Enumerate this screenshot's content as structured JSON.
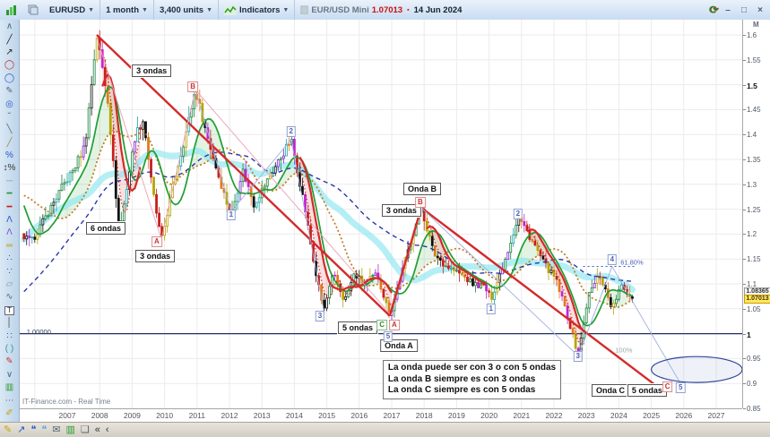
{
  "toolbar": {
    "symbol": "EURUSD",
    "timeframe": "1 month",
    "units": "3,400 units",
    "indicators_label": "Indicators",
    "feed_symbol": "EUR/USD Mini",
    "feed_price": "1.07013",
    "feed_date": "14 Jun 2024"
  },
  "window_controls": {
    "minimize": "–",
    "restore": "□",
    "close": "×",
    "refresh": "⟳"
  },
  "sidebar": {
    "tools": [
      {
        "n": "scroll-up-icon",
        "g": "∧",
        "c": "#456a8a"
      },
      {
        "n": "trendline-tool-icon",
        "g": "╱",
        "c": "#222"
      },
      {
        "n": "arrow-tool-icon",
        "g": "↗",
        "c": "#222"
      },
      {
        "n": "ellipse-red-tool-icon",
        "g": "◯",
        "c": "#cc2222"
      },
      {
        "n": "ellipse-blue-tool-icon",
        "g": "◯",
        "c": "#2855cc"
      },
      {
        "n": "pencil-tool-icon",
        "g": "✎",
        "c": "#5a6a7a"
      },
      {
        "n": "ellipse-handles-tool-icon",
        "g": "◎",
        "c": "#2855cc"
      },
      {
        "n": "arc-tool-icon",
        "g": "˘",
        "c": "#5a6a7a"
      },
      {
        "n": "segment-tool-icon",
        "g": "╲",
        "c": "#5a6a7a"
      },
      {
        "n": "ray-tool-icon",
        "g": "╱",
        "c": "#a08a50"
      },
      {
        "n": "fibonacci-tool-icon",
        "g": "%",
        "c": "#2855cc"
      },
      {
        "n": "percent-tool-icon",
        "g": "↕%",
        "c": "#333"
      },
      {
        "n": "divider-icon",
        "g": "─",
        "c": "#8a96a6"
      },
      {
        "n": "hline-green-tool-icon",
        "g": "━",
        "c": "#2a9a2a"
      },
      {
        "n": "hline-red-tool-icon",
        "g": "━",
        "c": "#cc2222"
      },
      {
        "n": "wave-count-tool-icon",
        "g": "Λ",
        "c": "#2855cc"
      },
      {
        "n": "wave-label-tool-icon",
        "g": "Λ",
        "c": "#7a55cc"
      },
      {
        "n": "channel-tool-icon",
        "g": "═",
        "c": "#b8a000"
      },
      {
        "n": "pattern-dots-tool-icon",
        "g": "∴",
        "c": "#2855cc"
      },
      {
        "n": "points-tool-icon",
        "g": "∵",
        "c": "#2855cc"
      },
      {
        "n": "eraser-tool-icon",
        "g": "▱",
        "c": "#8a96a6"
      },
      {
        "n": "curve-tool-icon",
        "g": "∿",
        "c": "#5a6a7a"
      },
      {
        "n": "text-tool-icon",
        "g": "T",
        "c": "#333",
        "box": true
      },
      {
        "n": "vline-tool-icon",
        "g": "│",
        "c": "#444"
      },
      {
        "n": "dots-tool-icon",
        "g": "∷",
        "c": "#2855cc"
      },
      {
        "n": "bracket-tool-icon",
        "g": "( )",
        "c": "#2a9a9a"
      },
      {
        "n": "pencil-red-tool-icon",
        "g": "✎",
        "c": "#cc3333"
      },
      {
        "n": "scroll-down-icon",
        "g": "∨",
        "c": "#456a8a"
      },
      {
        "n": "indicator-window-tool-icon",
        "g": "▥",
        "c": "#2a9a2a"
      },
      {
        "n": "more-tools-icon",
        "g": "⋯",
        "c": "#556"
      },
      {
        "n": "highlight-tool-icon",
        "g": "✐",
        "c": "#c9a400"
      }
    ]
  },
  "statusbar": {
    "watermark": "IT-Finance.com - Real Time",
    "icons": [
      {
        "n": "annotate-marker-icon",
        "g": "✎",
        "c": "#c9a400"
      },
      {
        "n": "share-icon",
        "g": "↗",
        "c": "#2855cc"
      },
      {
        "n": "chat-icon",
        "g": "❝",
        "c": "#2855cc"
      },
      {
        "n": "chat-alt-icon",
        "g": "❝",
        "c": "#55aadd"
      },
      {
        "n": "mail-icon",
        "g": "✉",
        "c": "#556677"
      },
      {
        "n": "chart-window-icon",
        "g": "▥",
        "c": "#2a9a2a"
      },
      {
        "n": "cascade-windows-icon",
        "g": "❏",
        "c": "#556677"
      },
      {
        "n": "collapse-left-icon",
        "g": "«",
        "c": "#333"
      },
      {
        "n": "step-left-icon",
        "g": "‹",
        "c": "#333"
      }
    ]
  },
  "axis": {
    "period_label": "M",
    "price_ticks": [
      {
        "v": 1.6,
        "l": "1.6"
      },
      {
        "v": 1.55,
        "l": "1.55"
      },
      {
        "v": 1.5,
        "l": "1.5",
        "bold": true
      },
      {
        "v": 1.45,
        "l": "1.45"
      },
      {
        "v": 1.4,
        "l": "1.4"
      },
      {
        "v": 1.35,
        "l": "1.35"
      },
      {
        "v": 1.3,
        "l": "1.3"
      },
      {
        "v": 1.25,
        "l": "1.25"
      },
      {
        "v": 1.2,
        "l": "1.2"
      },
      {
        "v": 1.15,
        "l": "1.15"
      },
      {
        "v": 1.1,
        "l": "1.1"
      },
      {
        "v": 1.05,
        "l": "1.05"
      },
      {
        "v": 1.0,
        "l": "1",
        "bold": true
      },
      {
        "v": 0.95,
        "l": "0.95"
      },
      {
        "v": 0.9,
        "l": "0.9"
      },
      {
        "v": 0.85,
        "l": "0.85"
      }
    ],
    "year_ticks": [
      2007,
      2008,
      2009,
      2010,
      2011,
      2012,
      2013,
      2014,
      2015,
      2016,
      2017,
      2018,
      2019,
      2020,
      2021,
      2022,
      2023,
      2024,
      2025,
      2026,
      2027
    ],
    "tags": [
      {
        "text": "1.08365",
        "p": 1.0836,
        "style": "white"
      },
      {
        "text": "1.07013",
        "p": 1.0701,
        "style": "yellow"
      }
    ]
  },
  "chart_data": {
    "type": "candlestick",
    "symbol": "EUR/USD",
    "timeframe": "monthly",
    "t_range": [
      2005.54,
      2027.8
    ],
    "p_range": [
      0.848,
      1.625
    ],
    "grid": {
      "price_step": 0.05,
      "year_step": 1
    },
    "keyframes": [
      [
        1999.0,
        1.17
      ],
      [
        2000.8,
        0.85
      ],
      [
        2002.0,
        0.88
      ],
      [
        2003.0,
        1.06
      ],
      [
        2004.0,
        1.25
      ],
      [
        2004.95,
        1.35
      ],
      [
        2005.45,
        1.2
      ],
      [
        2005.9,
        1.185
      ],
      [
        2006.3,
        1.23
      ],
      [
        2006.8,
        1.29
      ],
      [
        2007.2,
        1.33
      ],
      [
        2007.55,
        1.38
      ],
      [
        2007.91,
        1.6
      ],
      [
        2008.25,
        1.47
      ],
      [
        2008.6,
        1.2
      ],
      [
        2008.85,
        1.3
      ],
      [
        2009.1,
        1.4
      ],
      [
        2009.35,
        1.43
      ],
      [
        2009.6,
        1.3
      ],
      [
        2009.9,
        1.185
      ],
      [
        2010.3,
        1.31
      ],
      [
        2010.65,
        1.4
      ],
      [
        2010.95,
        1.49
      ],
      [
        2011.3,
        1.4
      ],
      [
        2011.65,
        1.32
      ],
      [
        2012.05,
        1.235
      ],
      [
        2012.4,
        1.33
      ],
      [
        2012.75,
        1.26
      ],
      [
        2013.1,
        1.3
      ],
      [
        2013.5,
        1.345
      ],
      [
        2013.9,
        1.39
      ],
      [
        2014.3,
        1.26
      ],
      [
        2014.6,
        1.14
      ],
      [
        2014.9,
        1.046
      ],
      [
        2015.2,
        1.12
      ],
      [
        2015.55,
        1.065
      ],
      [
        2015.85,
        1.12
      ],
      [
        2016.15,
        1.1
      ],
      [
        2016.55,
        1.12
      ],
      [
        2016.94,
        1.036
      ],
      [
        2017.3,
        1.12
      ],
      [
        2017.6,
        1.19
      ],
      [
        2017.91,
        1.253
      ],
      [
        2018.3,
        1.16
      ],
      [
        2018.7,
        1.135
      ],
      [
        2019.1,
        1.12
      ],
      [
        2019.5,
        1.1
      ],
      [
        2019.85,
        1.095
      ],
      [
        2020.06,
        1.07
      ],
      [
        2020.45,
        1.14
      ],
      [
        2020.9,
        1.235
      ],
      [
        2021.3,
        1.19
      ],
      [
        2021.7,
        1.14
      ],
      [
        2022.05,
        1.11
      ],
      [
        2022.4,
        1.04
      ],
      [
        2022.75,
        0.955
      ],
      [
        2023.05,
        1.075
      ],
      [
        2023.4,
        1.12
      ],
      [
        2023.8,
        1.05
      ],
      [
        2024.05,
        1.095
      ],
      [
        2024.45,
        1.07013
      ]
    ],
    "visible_from": 2005.62,
    "ma": {
      "fast": 10,
      "med": 21,
      "slow": 60,
      "band": 40,
      "red_fast": 4,
      "red_slow": 8
    },
    "red_band_intervals": [
      [
        2008.05,
        2009.25
      ],
      [
        2014.15,
        2017.05
      ],
      [
        2018.05,
        2019.95
      ],
      [
        2021.15,
        2022.95
      ]
    ],
    "trendlines": [
      {
        "cls": "red",
        "pts": [
          [
            2007.91,
            1.6
          ],
          [
            2016.94,
            1.036
          ]
        ]
      },
      {
        "cls": "red",
        "pts": [
          [
            2016.94,
            1.036
          ],
          [
            2017.91,
            1.253
          ]
        ]
      },
      {
        "cls": "red",
        "pts": [
          [
            2017.91,
            1.253
          ],
          [
            2025.42,
            0.882
          ]
        ]
      },
      {
        "cls": "pink",
        "pts": [
          [
            2007.91,
            1.595
          ],
          [
            2009.9,
            1.19
          ]
        ]
      },
      {
        "cls": "pink",
        "pts": [
          [
            2009.9,
            1.19
          ],
          [
            2010.95,
            1.49
          ]
        ]
      },
      {
        "cls": "pink",
        "pts": [
          [
            2010.95,
            1.49
          ],
          [
            2016.94,
            1.04
          ]
        ]
      },
      {
        "cls": "blue",
        "pts": [
          [
            2010.95,
            1.49
          ],
          [
            2012.05,
            1.245
          ]
        ]
      },
      {
        "cls": "blue",
        "pts": [
          [
            2012.05,
            1.245
          ],
          [
            2013.9,
            1.39
          ]
        ]
      },
      {
        "cls": "blue",
        "pts": [
          [
            2013.9,
            1.39
          ],
          [
            2014.9,
            1.05
          ]
        ]
      },
      {
        "cls": "blue",
        "pts": [
          [
            2017.91,
            1.253
          ],
          [
            2022.75,
            0.955
          ]
        ]
      },
      {
        "cls": "blue",
        "pts": [
          [
            2022.75,
            0.955
          ],
          [
            2023.79,
            1.135
          ]
        ]
      },
      {
        "cls": "blue",
        "pts": [
          [
            2023.79,
            1.135
          ],
          [
            2025.9,
            0.9
          ]
        ]
      }
    ],
    "fib": {
      "p": 1.135,
      "t0": 2022.9,
      "t1": 2024.5,
      "label": "61.80%",
      "label_t": 2024.05,
      "label_p": 1.143
    },
    "pct_label": {
      "text": "100%",
      "t": 2024.15,
      "p": 0.967
    },
    "hline": {
      "p": 1.0,
      "label": "1.00000",
      "label_t": 2005.75,
      "label_p": 1.012
    },
    "ellipse": {
      "t": 2026.4,
      "p": 0.928,
      "rt": 1.4,
      "rp": 0.026
    },
    "wave_labels": [
      {
        "label": "B",
        "t": 2010.87,
        "p": 1.496,
        "style": "red"
      },
      {
        "label": "A",
        "t": 2009.76,
        "p": 1.184,
        "style": "red"
      },
      {
        "label": "1",
        "t": 2012.05,
        "p": 1.238,
        "style": "blue"
      },
      {
        "label": "2",
        "t": 2013.9,
        "p": 1.406,
        "style": "blue"
      },
      {
        "label": "3",
        "t": 2014.79,
        "p": 1.035,
        "style": "blue"
      },
      {
        "label": "C",
        "t": 2016.7,
        "p": 1.017,
        "style": "green"
      },
      {
        "label": "A",
        "t": 2017.08,
        "p": 1.017,
        "style": "red"
      },
      {
        "label": "5",
        "t": 2016.89,
        "p": 0.994,
        "style": "blue"
      },
      {
        "label": "B",
        "t": 2017.88,
        "p": 1.263,
        "style": "red"
      },
      {
        "label": "1",
        "t": 2020.06,
        "p": 1.049,
        "style": "blue"
      },
      {
        "label": "2",
        "t": 2020.89,
        "p": 1.241,
        "style": "blue"
      },
      {
        "label": "3",
        "t": 2022.74,
        "p": 0.954,
        "style": "blue"
      },
      {
        "label": "4",
        "t": 2023.79,
        "p": 1.148,
        "style": "blue"
      },
      {
        "label": "C",
        "t": 2025.5,
        "p": 0.893,
        "style": "red"
      },
      {
        "label": "5",
        "t": 2025.9,
        "p": 0.891,
        "style": "blue"
      }
    ],
    "text_labels": [
      {
        "text": "3 ondas",
        "t": 2009.6,
        "p": 1.528
      },
      {
        "text": "6 ondas",
        "t": 2008.19,
        "p": 1.211
      },
      {
        "text": "3 ondas",
        "t": 2009.71,
        "p": 1.155
      },
      {
        "text": "5 ondas",
        "t": 2015.95,
        "p": 1.011
      },
      {
        "text": "Onda  A",
        "t": 2017.22,
        "p": 0.976
      },
      {
        "text": "3 ondas",
        "t": 2017.3,
        "p": 1.248
      },
      {
        "text": "Onda  B",
        "t": 2017.94,
        "p": 1.29
      },
      {
        "text": "Onda  C",
        "t": 2023.74,
        "p": 0.886
      },
      {
        "text": "5 ondas",
        "t": 2024.87,
        "p": 0.886
      }
    ],
    "note_box": {
      "t": 2016.72,
      "p": 0.947,
      "lines": [
        "La onda puede ser con 3 o con 5 ondas",
        "La onda B siempre es con 3 ondas",
        "La onda C siempre es con 5 ondas"
      ]
    },
    "colors": {
      "grid": "#ebebeb",
      "up_palette": [
        "#15803d",
        "#15803d",
        "#111111",
        "#b8a400",
        "#18a5a5",
        "#7c22c8"
      ],
      "down_palette": [
        "#c81e1e",
        "#c81e1e",
        "#111111",
        "#b8a400",
        "#c026d3",
        "#e07b1a"
      ],
      "ma_fast": "#1f9e33",
      "ma_med": "#c07a20",
      "ma_slow": "#2a35a8",
      "ma_band": "#8ce6f0",
      "green_fill": "rgba(80,180,80,0.16)",
      "red_fill": "rgba(235,80,80,0.18)",
      "red_band": "#d42a2a",
      "trend_red": "#d42a2a",
      "trend_pink": "#e8a0b8",
      "trend_blue": "#9fb0dd",
      "fib_blue": "#3b57c4",
      "hline_navy": "#1f2d66",
      "ellipse_stroke": "#2f4699",
      "ellipse_fill": "rgba(160,175,215,0.18)"
    }
  }
}
